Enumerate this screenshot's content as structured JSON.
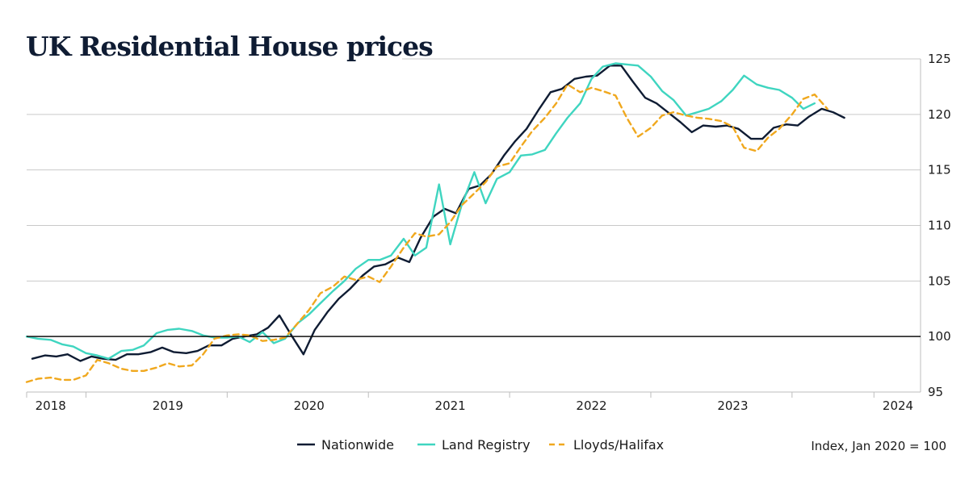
{
  "chart_data": {
    "type": "line",
    "title": "UK Residential House prices",
    "note": "Index, Jan 2020 = 100",
    "ylim": [
      95,
      125
    ],
    "yticks": [
      95,
      100,
      105,
      110,
      115,
      120,
      125
    ],
    "xlim": [
      2018.0,
      2024.33
    ],
    "x_tick_labels": [
      {
        "label": "2018",
        "x": 2018.17
      },
      {
        "label": "2019",
        "x": 2019.0
      },
      {
        "label": "2020",
        "x": 2020.0
      },
      {
        "label": "2021",
        "x": 2021.0
      },
      {
        "label": "2022",
        "x": 2022.0
      },
      {
        "label": "2023",
        "x": 2023.0
      },
      {
        "label": "2024",
        "x": 2024.17
      }
    ],
    "x_tick_marks": [
      2018.0,
      2018.42,
      2019.42,
      2020.42,
      2021.42,
      2022.42,
      2023.42,
      2024.0
    ],
    "baseline": 100,
    "series": [
      {
        "name": "Nationwide",
        "color": "#0f1c33",
        "dash": "",
        "points": [
          [
            2018.04,
            98.0
          ],
          [
            2018.13,
            98.3
          ],
          [
            2018.21,
            98.2
          ],
          [
            2018.29,
            98.4
          ],
          [
            2018.38,
            97.8
          ],
          [
            2018.46,
            98.2
          ],
          [
            2018.54,
            98.0
          ],
          [
            2018.63,
            97.9
          ],
          [
            2018.71,
            98.4
          ],
          [
            2018.79,
            98.4
          ],
          [
            2018.88,
            98.6
          ],
          [
            2018.96,
            99.0
          ],
          [
            2019.04,
            98.6
          ],
          [
            2019.13,
            98.5
          ],
          [
            2019.21,
            98.7
          ],
          [
            2019.29,
            99.2
          ],
          [
            2019.38,
            99.2
          ],
          [
            2019.46,
            99.8
          ],
          [
            2019.54,
            100.0
          ],
          [
            2019.63,
            100.2
          ],
          [
            2019.71,
            100.8
          ],
          [
            2019.79,
            101.9
          ],
          [
            2019.88,
            100.0
          ],
          [
            2019.96,
            98.4
          ],
          [
            2020.04,
            100.6
          ],
          [
            2020.13,
            102.2
          ],
          [
            2020.21,
            103.4
          ],
          [
            2020.29,
            104.3
          ],
          [
            2020.38,
            105.5
          ],
          [
            2020.46,
            106.3
          ],
          [
            2020.54,
            106.5
          ],
          [
            2020.63,
            107.1
          ],
          [
            2020.71,
            106.7
          ],
          [
            2020.79,
            108.9
          ],
          [
            2020.88,
            110.8
          ],
          [
            2020.96,
            111.5
          ],
          [
            2021.04,
            111.1
          ],
          [
            2021.13,
            113.3
          ],
          [
            2021.21,
            113.6
          ],
          [
            2021.29,
            114.6
          ],
          [
            2021.38,
            116.3
          ],
          [
            2021.46,
            117.6
          ],
          [
            2021.54,
            118.7
          ],
          [
            2021.63,
            120.5
          ],
          [
            2021.71,
            122.0
          ],
          [
            2021.79,
            122.3
          ],
          [
            2021.88,
            123.2
          ],
          [
            2021.96,
            123.4
          ],
          [
            2022.04,
            123.5
          ],
          [
            2022.13,
            124.4
          ],
          [
            2022.21,
            124.4
          ],
          [
            2022.29,
            123.0
          ],
          [
            2022.38,
            121.5
          ],
          [
            2022.46,
            121.0
          ],
          [
            2022.54,
            120.2
          ],
          [
            2022.63,
            119.3
          ],
          [
            2022.71,
            118.4
          ],
          [
            2022.79,
            119.0
          ],
          [
            2022.88,
            118.9
          ],
          [
            2022.96,
            119.0
          ],
          [
            2023.04,
            118.7
          ],
          [
            2023.13,
            117.8
          ],
          [
            2023.21,
            117.8
          ],
          [
            2023.29,
            118.8
          ],
          [
            2023.38,
            119.1
          ],
          [
            2023.46,
            119.0
          ],
          [
            2023.54,
            119.8
          ],
          [
            2023.63,
            120.5
          ],
          [
            2023.71,
            120.2
          ],
          [
            2023.79,
            119.7
          ]
        ]
      },
      {
        "name": "Land Registry",
        "color": "#3fd5c0",
        "dash": "",
        "points": [
          [
            2018.0,
            100.0
          ],
          [
            2018.08,
            99.8
          ],
          [
            2018.17,
            99.7
          ],
          [
            2018.25,
            99.3
          ],
          [
            2018.33,
            99.1
          ],
          [
            2018.42,
            98.5
          ],
          [
            2018.5,
            98.3
          ],
          [
            2018.58,
            98.0
          ],
          [
            2018.67,
            98.7
          ],
          [
            2018.75,
            98.8
          ],
          [
            2018.83,
            99.2
          ],
          [
            2018.92,
            100.3
          ],
          [
            2019.0,
            100.6
          ],
          [
            2019.08,
            100.7
          ],
          [
            2019.17,
            100.5
          ],
          [
            2019.25,
            100.1
          ],
          [
            2019.33,
            99.9
          ],
          [
            2019.42,
            99.9
          ],
          [
            2019.5,
            100.0
          ],
          [
            2019.58,
            99.5
          ],
          [
            2019.67,
            100.4
          ],
          [
            2019.75,
            99.4
          ],
          [
            2019.83,
            99.8
          ],
          [
            2019.92,
            101.2
          ],
          [
            2020.0,
            102.0
          ],
          [
            2020.08,
            103.0
          ],
          [
            2020.17,
            104.1
          ],
          [
            2020.25,
            105.0
          ],
          [
            2020.33,
            106.1
          ],
          [
            2020.42,
            106.9
          ],
          [
            2020.5,
            106.9
          ],
          [
            2020.58,
            107.3
          ],
          [
            2020.67,
            108.8
          ],
          [
            2020.75,
            107.3
          ],
          [
            2020.83,
            108.0
          ],
          [
            2020.92,
            113.7
          ],
          [
            2021.0,
            108.3
          ],
          [
            2021.08,
            111.8
          ],
          [
            2021.17,
            114.8
          ],
          [
            2021.25,
            112.0
          ],
          [
            2021.33,
            114.2
          ],
          [
            2021.42,
            114.8
          ],
          [
            2021.5,
            116.3
          ],
          [
            2021.58,
            116.4
          ],
          [
            2021.67,
            116.8
          ],
          [
            2021.75,
            118.3
          ],
          [
            2021.83,
            119.7
          ],
          [
            2021.92,
            121.0
          ],
          [
            2022.0,
            123.2
          ],
          [
            2022.08,
            124.3
          ],
          [
            2022.17,
            124.6
          ],
          [
            2022.25,
            124.5
          ],
          [
            2022.33,
            124.4
          ],
          [
            2022.42,
            123.4
          ],
          [
            2022.5,
            122.1
          ],
          [
            2022.58,
            121.3
          ],
          [
            2022.67,
            119.9
          ],
          [
            2022.75,
            120.2
          ],
          [
            2022.83,
            120.5
          ],
          [
            2022.92,
            121.2
          ],
          [
            2023.0,
            122.2
          ],
          [
            2023.08,
            123.5
          ],
          [
            2023.17,
            122.7
          ],
          [
            2023.25,
            122.4
          ],
          [
            2023.33,
            122.2
          ],
          [
            2023.42,
            121.5
          ],
          [
            2023.5,
            120.5
          ],
          [
            2023.58,
            121.0
          ]
        ]
      },
      {
        "name": "Lloyds/Halifax",
        "color": "#f0a81e",
        "dash": "7,5",
        "points": [
          [
            2018.0,
            95.9
          ],
          [
            2018.08,
            96.2
          ],
          [
            2018.17,
            96.3
          ],
          [
            2018.25,
            96.1
          ],
          [
            2018.33,
            96.1
          ],
          [
            2018.42,
            96.5
          ],
          [
            2018.5,
            97.9
          ],
          [
            2018.58,
            97.6
          ],
          [
            2018.67,
            97.1
          ],
          [
            2018.75,
            96.9
          ],
          [
            2018.83,
            96.9
          ],
          [
            2018.92,
            97.2
          ],
          [
            2019.0,
            97.6
          ],
          [
            2019.08,
            97.3
          ],
          [
            2019.17,
            97.4
          ],
          [
            2019.25,
            98.4
          ],
          [
            2019.33,
            99.8
          ],
          [
            2019.42,
            100.1
          ],
          [
            2019.5,
            100.2
          ],
          [
            2019.58,
            100.1
          ],
          [
            2019.67,
            99.6
          ],
          [
            2019.75,
            99.7
          ],
          [
            2019.83,
            99.9
          ],
          [
            2019.92,
            101.2
          ],
          [
            2020.0,
            102.4
          ],
          [
            2020.08,
            103.9
          ],
          [
            2020.17,
            104.5
          ],
          [
            2020.25,
            105.4
          ],
          [
            2020.33,
            105.1
          ],
          [
            2020.42,
            105.4
          ],
          [
            2020.5,
            104.9
          ],
          [
            2020.58,
            106.3
          ],
          [
            2020.67,
            108.0
          ],
          [
            2020.75,
            109.3
          ],
          [
            2020.83,
            109.0
          ],
          [
            2020.92,
            109.2
          ],
          [
            2021.0,
            110.3
          ],
          [
            2021.08,
            111.8
          ],
          [
            2021.17,
            112.9
          ],
          [
            2021.25,
            113.9
          ],
          [
            2021.33,
            115.3
          ],
          [
            2021.42,
            115.6
          ],
          [
            2021.5,
            117.1
          ],
          [
            2021.58,
            118.5
          ],
          [
            2021.67,
            119.7
          ],
          [
            2021.75,
            121.0
          ],
          [
            2021.83,
            122.7
          ],
          [
            2021.92,
            122.0
          ],
          [
            2022.0,
            122.4
          ],
          [
            2022.08,
            122.1
          ],
          [
            2022.17,
            121.7
          ],
          [
            2022.25,
            119.7
          ],
          [
            2022.33,
            118.0
          ],
          [
            2022.42,
            118.8
          ],
          [
            2022.5,
            119.9
          ],
          [
            2022.58,
            120.2
          ],
          [
            2022.67,
            119.9
          ],
          [
            2022.75,
            119.7
          ],
          [
            2022.83,
            119.6
          ],
          [
            2022.92,
            119.4
          ],
          [
            2023.0,
            118.9
          ],
          [
            2023.08,
            117.0
          ],
          [
            2023.17,
            116.7
          ],
          [
            2023.25,
            117.9
          ],
          [
            2023.33,
            118.7
          ],
          [
            2023.42,
            120.0
          ],
          [
            2023.5,
            121.4
          ],
          [
            2023.58,
            121.8
          ],
          [
            2023.67,
            120.5
          ]
        ]
      }
    ]
  }
}
